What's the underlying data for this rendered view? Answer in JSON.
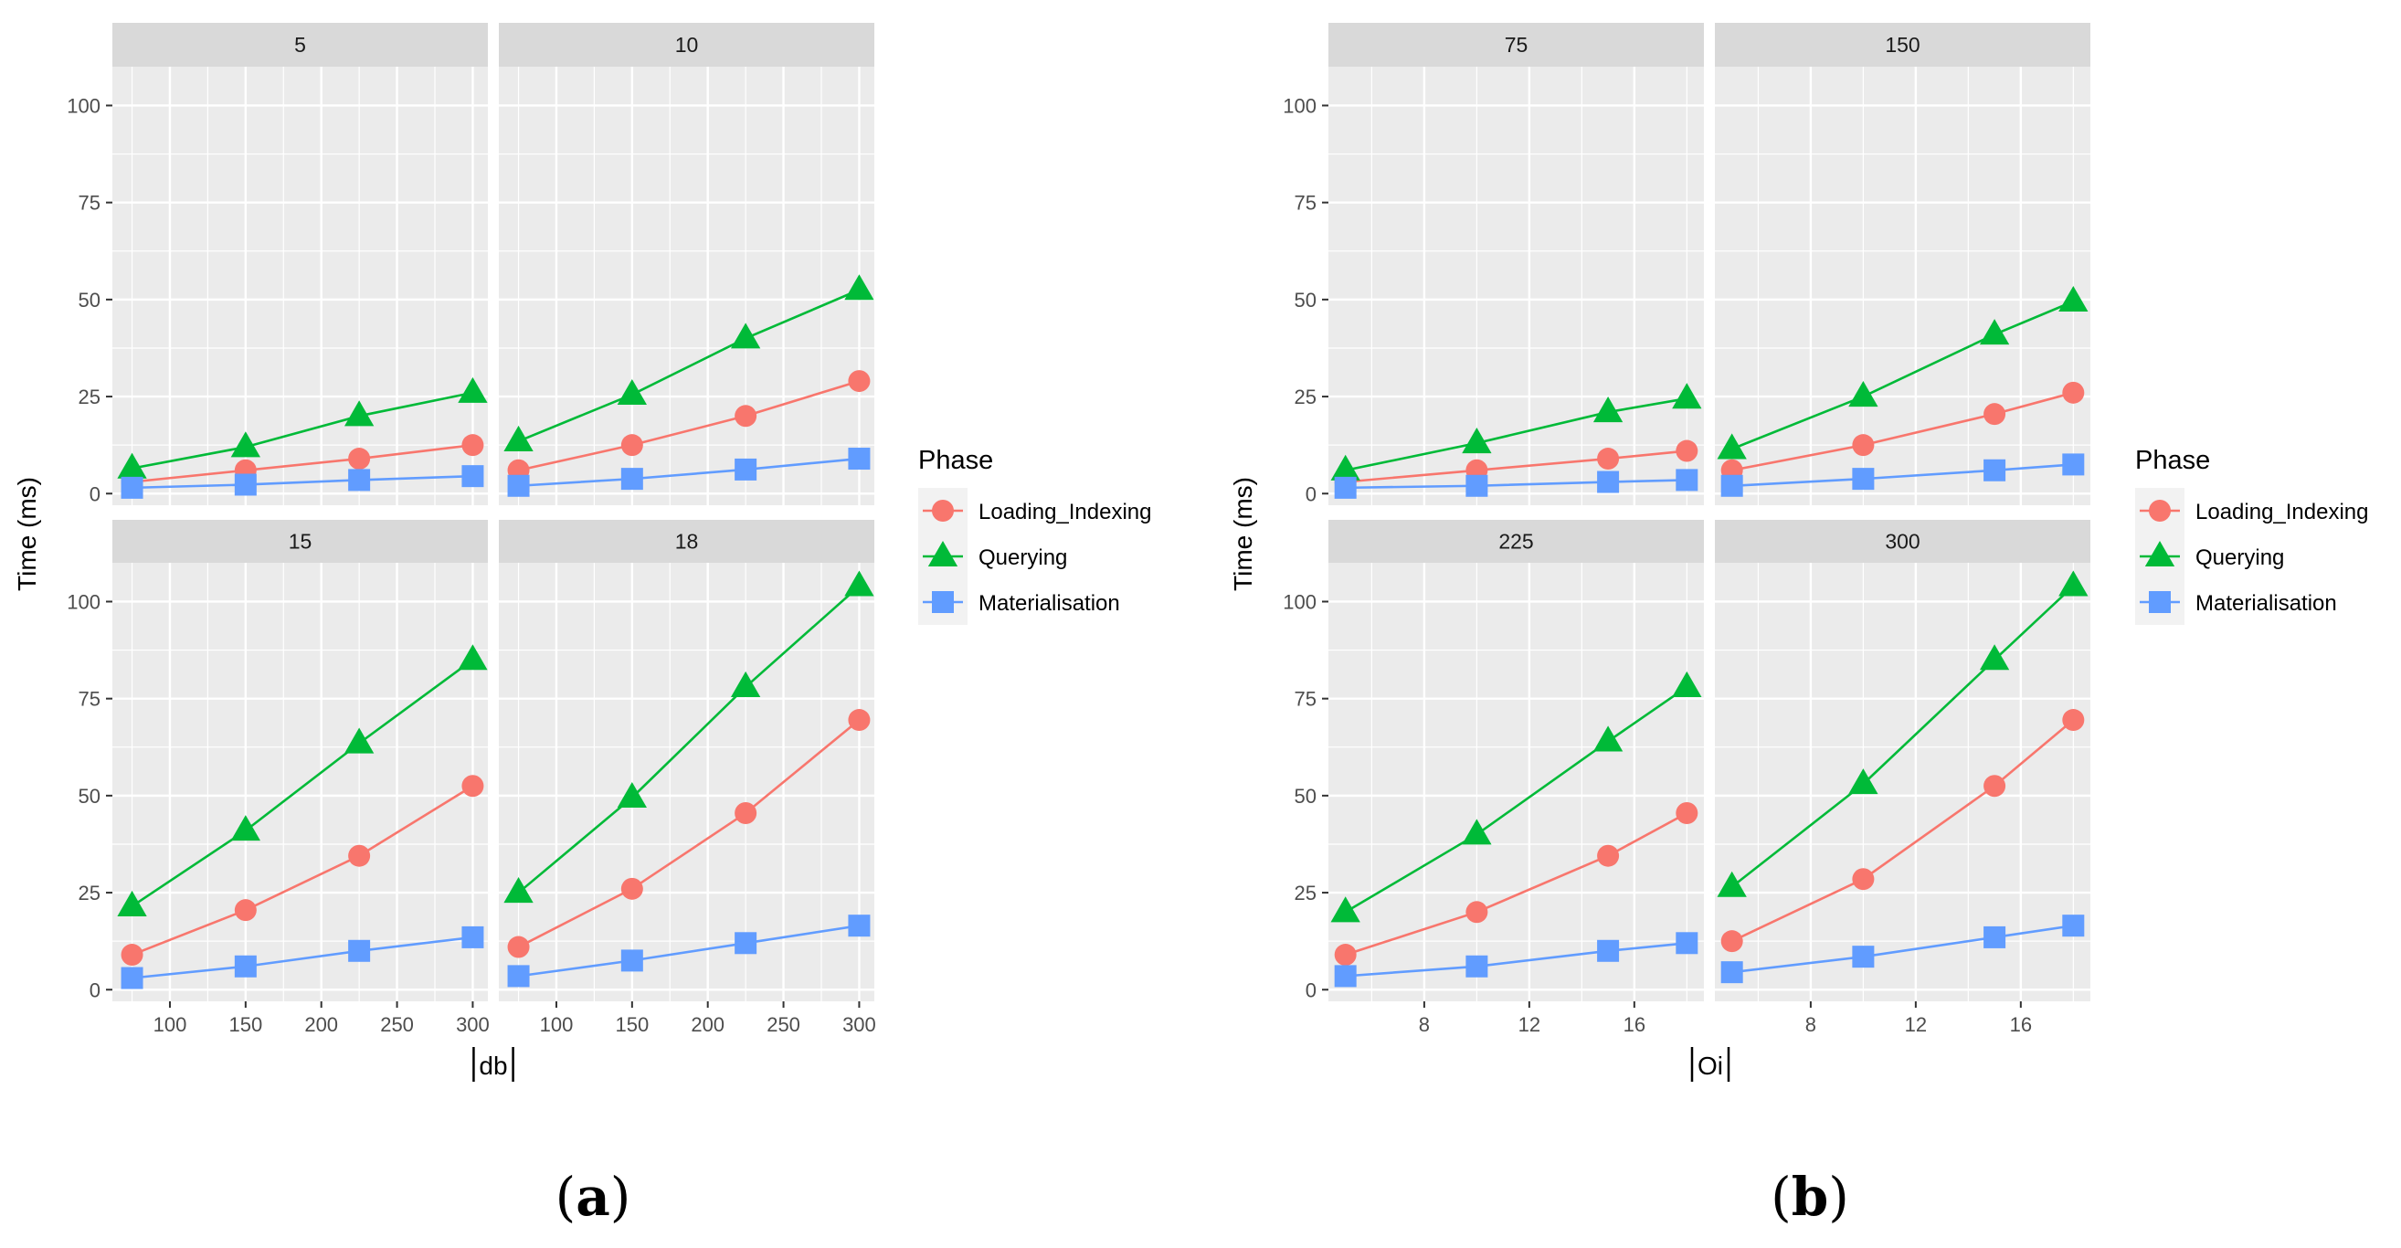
{
  "colors": {
    "Loading_Indexing": "#F8766D",
    "Querying": "#00BA38",
    "Materialisation": "#619CFF",
    "panel_bg": "#EBEBEB",
    "strip_bg": "#D9D9D9",
    "grid": "#FFFFFF"
  },
  "chart_data": [
    {
      "type": "line",
      "caption": "a",
      "xlabel": "db",
      "ylabel": "Time (ms)",
      "legend_title": "Phase",
      "legend_position": "right",
      "series_names": [
        "Loading_Indexing",
        "Querying",
        "Materialisation"
      ],
      "series_shapes": [
        "circle",
        "triangle",
        "square"
      ],
      "x": [
        75,
        150,
        225,
        300
      ],
      "xlim": [
        62,
        310
      ],
      "xticks": [
        100,
        150,
        200,
        250,
        300
      ],
      "ylim": [
        -3,
        110
      ],
      "yticks": [
        0,
        25,
        50,
        75,
        100
      ],
      "facets": [
        {
          "label": "5",
          "series": [
            [
              3,
              6,
              9,
              12.5
            ],
            [
              6.5,
              12,
              20,
              26
            ],
            [
              1.5,
              2.3,
              3.5,
              4.5
            ]
          ]
        },
        {
          "label": "10",
          "series": [
            [
              6,
              12.5,
              20,
              29
            ],
            [
              13.5,
              25.5,
              40,
              52.5
            ],
            [
              2,
              3.8,
              6.2,
              9
            ]
          ]
        },
        {
          "label": "15",
          "series": [
            [
              9,
              20.5,
              34.5,
              52.5
            ],
            [
              21.5,
              41,
              63.5,
              85
            ],
            [
              3,
              6,
              10,
              13.5
            ]
          ]
        },
        {
          "label": "18",
          "series": [
            [
              11,
              26,
              45.5,
              69.5
            ],
            [
              25,
              49.5,
              78,
              104
            ],
            [
              3.5,
              7.5,
              12,
              16.5
            ]
          ]
        }
      ]
    },
    {
      "type": "line",
      "caption": "b",
      "xlabel": "Oi",
      "ylabel": "Time (ms)",
      "legend_title": "Phase",
      "legend_position": "right",
      "series_names": [
        "Loading_Indexing",
        "Querying",
        "Materialisation"
      ],
      "series_shapes": [
        "circle",
        "triangle",
        "square"
      ],
      "x": [
        5,
        10,
        15,
        18
      ],
      "xlim": [
        4.35,
        18.65
      ],
      "xticks": [
        8,
        12,
        16
      ],
      "ylim": [
        -3,
        110
      ],
      "yticks": [
        0,
        25,
        50,
        75,
        100
      ],
      "facets": [
        {
          "label": "75",
          "series": [
            [
              3,
              6,
              9,
              11
            ],
            [
              6,
              13,
              21,
              24.5
            ],
            [
              1.5,
              2,
              3,
              3.5
            ]
          ]
        },
        {
          "label": "150",
          "series": [
            [
              6,
              12.5,
              20.5,
              26
            ],
            [
              11.5,
              25,
              41,
              49.5
            ],
            [
              2,
              3.8,
              6,
              7.5
            ]
          ]
        },
        {
          "label": "225",
          "series": [
            [
              9,
              20,
              34.5,
              45.5
            ],
            [
              20,
              40,
              64,
              78
            ],
            [
              3.5,
              6,
              10,
              12
            ]
          ]
        },
        {
          "label": "300",
          "series": [
            [
              12.5,
              28.5,
              52.5,
              69.5
            ],
            [
              26.5,
              53,
              85,
              104
            ],
            [
              4.5,
              8.5,
              13.5,
              16.5
            ]
          ]
        }
      ]
    }
  ]
}
